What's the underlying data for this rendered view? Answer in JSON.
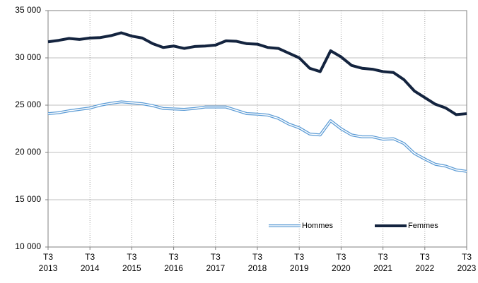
{
  "chart_data": {
    "type": "line",
    "categories": [
      "T3\n2013",
      null,
      null,
      null,
      "T3\n2014",
      null,
      null,
      null,
      "T3\n2015",
      null,
      null,
      null,
      "T3\n2016",
      null,
      null,
      null,
      "T3\n2017",
      null,
      null,
      null,
      "T3\n2018",
      null,
      null,
      null,
      "T3\n2019",
      null,
      null,
      null,
      "T3\n2020",
      null,
      null,
      null,
      "T3\n2021",
      null,
      null,
      null,
      "T3\n2022",
      null,
      null,
      null,
      "T3\n2023"
    ],
    "series": [
      {
        "name": "Hommes",
        "color": "#5b9bd5",
        "style": "double",
        "values": [
          24100,
          24200,
          24400,
          24550,
          24700,
          25000,
          25200,
          25350,
          25250,
          25150,
          24950,
          24650,
          24600,
          24550,
          24650,
          24800,
          24800,
          24800,
          24450,
          24100,
          24050,
          23950,
          23600,
          23000,
          22600,
          21950,
          21850,
          23350,
          22500,
          21850,
          21650,
          21650,
          21400,
          21450,
          20950,
          19900,
          19300,
          18750,
          18550,
          18150,
          18000
        ]
      },
      {
        "name": "Femmes",
        "color": "#14243f",
        "style": "thick",
        "values": [
          31700,
          31850,
          32050,
          31950,
          32100,
          32150,
          32350,
          32650,
          32300,
          32100,
          31500,
          31100,
          31250,
          31000,
          31200,
          31250,
          31350,
          31800,
          31750,
          31500,
          31450,
          31100,
          31000,
          30500,
          30000,
          28900,
          28550,
          30750,
          30100,
          29200,
          28900,
          28800,
          28550,
          28450,
          27700,
          26500,
          25800,
          25100,
          24700,
          24000,
          24100
        ]
      }
    ],
    "ylim": [
      10000,
      35000
    ],
    "yticks": [
      {
        "value": 10000,
        "label": "10 000"
      },
      {
        "value": 15000,
        "label": "15 000"
      },
      {
        "value": 20000,
        "label": "20 000"
      },
      {
        "value": 25000,
        "label": "25 000"
      },
      {
        "value": 30000,
        "label": "30 000"
      },
      {
        "value": 35000,
        "label": "35 000"
      }
    ],
    "grid": true,
    "legend": "bottom-right"
  }
}
